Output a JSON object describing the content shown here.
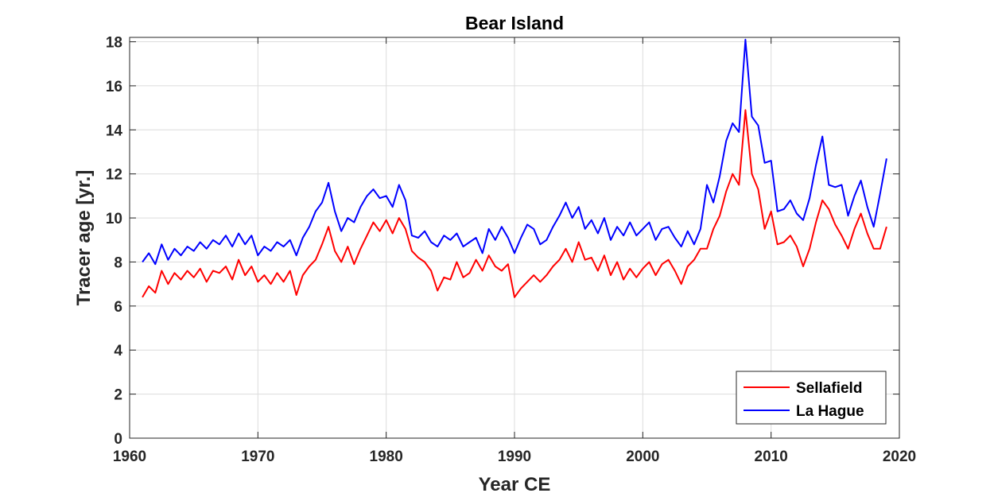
{
  "chart_data": {
    "type": "line",
    "title": "Bear Island",
    "xlabel": "Year CE",
    "ylabel": "Tracer age [yr.]",
    "xlim": [
      1960,
      2020
    ],
    "ylim": [
      0,
      18.2
    ],
    "xticks": [
      1960,
      1970,
      1980,
      1990,
      2000,
      2010,
      2020
    ],
    "yticks": [
      0,
      2,
      4,
      6,
      8,
      10,
      12,
      14,
      16,
      18
    ],
    "grid": true,
    "legend_position": "bottom-right",
    "series": [
      {
        "name": "Sellafield",
        "color": "#ff0000",
        "x": [
          1961.0,
          1961.5,
          1962.0,
          1962.5,
          1963.0,
          1963.5,
          1964.0,
          1964.5,
          1965.0,
          1965.5,
          1966.0,
          1966.5,
          1967.0,
          1967.5,
          1968.0,
          1968.5,
          1969.0,
          1969.5,
          1970.0,
          1970.5,
          1971.0,
          1971.5,
          1972.0,
          1972.5,
          1973.0,
          1973.5,
          1974.0,
          1974.5,
          1975.0,
          1975.5,
          1976.0,
          1976.5,
          1977.0,
          1977.5,
          1978.0,
          1978.5,
          1979.0,
          1979.5,
          1980.0,
          1980.5,
          1981.0,
          1981.5,
          1982.0,
          1982.5,
          1983.0,
          1983.5,
          1984.0,
          1984.5,
          1985.0,
          1985.5,
          1986.0,
          1986.5,
          1987.0,
          1987.5,
          1988.0,
          1988.5,
          1989.0,
          1989.5,
          1990.0,
          1990.5,
          1991.0,
          1991.5,
          1992.0,
          1992.5,
          1993.0,
          1993.5,
          1994.0,
          1994.5,
          1995.0,
          1995.5,
          1996.0,
          1996.5,
          1997.0,
          1997.5,
          1998.0,
          1998.5,
          1999.0,
          1999.5,
          2000.0,
          2000.5,
          2001.0,
          2001.5,
          2002.0,
          2002.5,
          2003.0,
          2003.5,
          2004.0,
          2004.5,
          2005.0,
          2005.5,
          2006.0,
          2006.5,
          2007.0,
          2007.5,
          2008.0,
          2008.5,
          2009.0,
          2009.5,
          2010.0,
          2010.5,
          2011.0,
          2011.5,
          2012.0,
          2012.5,
          2013.0,
          2013.5,
          2014.0,
          2014.5,
          2015.0,
          2015.5,
          2016.0,
          2016.5,
          2017.0,
          2017.5,
          2018.0,
          2018.5,
          2019.0
        ],
        "values": [
          6.4,
          6.9,
          6.6,
          7.6,
          7.0,
          7.5,
          7.2,
          7.6,
          7.3,
          7.7,
          7.1,
          7.6,
          7.5,
          7.8,
          7.2,
          8.1,
          7.4,
          7.8,
          7.1,
          7.4,
          7.0,
          7.5,
          7.1,
          7.6,
          6.5,
          7.4,
          7.8,
          8.1,
          8.8,
          9.6,
          8.5,
          8.0,
          8.7,
          7.9,
          8.6,
          9.2,
          9.8,
          9.4,
          9.9,
          9.3,
          10.0,
          9.5,
          8.5,
          8.2,
          8.0,
          7.6,
          6.7,
          7.3,
          7.2,
          8.0,
          7.3,
          7.5,
          8.1,
          7.6,
          8.3,
          7.8,
          7.6,
          7.9,
          6.4,
          6.8,
          7.1,
          7.4,
          7.1,
          7.4,
          7.8,
          8.1,
          8.6,
          8.0,
          8.9,
          8.1,
          8.2,
          7.6,
          8.3,
          7.4,
          8.0,
          7.2,
          7.7,
          7.3,
          7.7,
          8.0,
          7.4,
          7.9,
          8.1,
          7.6,
          7.0,
          7.8,
          8.1,
          8.6,
          8.6,
          9.5,
          10.1,
          11.2,
          12.0,
          11.5,
          14.9,
          12.0,
          11.3,
          9.5,
          10.3,
          8.8,
          8.9,
          9.2,
          8.7,
          7.8,
          8.6,
          9.8,
          10.8,
          10.4,
          9.7,
          9.2,
          8.6,
          9.5,
          10.2,
          9.3,
          8.6,
          8.6,
          9.6
        ]
      },
      {
        "name": "La Hague",
        "color": "#0000ff",
        "x": [
          1961.0,
          1961.5,
          1962.0,
          1962.5,
          1963.0,
          1963.5,
          1964.0,
          1964.5,
          1965.0,
          1965.5,
          1966.0,
          1966.5,
          1967.0,
          1967.5,
          1968.0,
          1968.5,
          1969.0,
          1969.5,
          1970.0,
          1970.5,
          1971.0,
          1971.5,
          1972.0,
          1972.5,
          1973.0,
          1973.5,
          1974.0,
          1974.5,
          1975.0,
          1975.5,
          1976.0,
          1976.5,
          1977.0,
          1977.5,
          1978.0,
          1978.5,
          1979.0,
          1979.5,
          1980.0,
          1980.5,
          1981.0,
          1981.5,
          1982.0,
          1982.5,
          1983.0,
          1983.5,
          1984.0,
          1984.5,
          1985.0,
          1985.5,
          1986.0,
          1986.5,
          1987.0,
          1987.5,
          1988.0,
          1988.5,
          1989.0,
          1989.5,
          1990.0,
          1990.5,
          1991.0,
          1991.5,
          1992.0,
          1992.5,
          1993.0,
          1993.5,
          1994.0,
          1994.5,
          1995.0,
          1995.5,
          1996.0,
          1996.5,
          1997.0,
          1997.5,
          1998.0,
          1998.5,
          1999.0,
          1999.5,
          2000.0,
          2000.5,
          2001.0,
          2001.5,
          2002.0,
          2002.5,
          2003.0,
          2003.5,
          2004.0,
          2004.5,
          2005.0,
          2005.5,
          2006.0,
          2006.5,
          2007.0,
          2007.5,
          2008.0,
          2008.5,
          2009.0,
          2009.5,
          2010.0,
          2010.5,
          2011.0,
          2011.5,
          2012.0,
          2012.5,
          2013.0,
          2013.5,
          2014.0,
          2014.5,
          2015.0,
          2015.5,
          2016.0,
          2016.5,
          2017.0,
          2017.5,
          2018.0,
          2018.5,
          2019.0
        ],
        "values": [
          8.0,
          8.4,
          7.9,
          8.8,
          8.1,
          8.6,
          8.3,
          8.7,
          8.5,
          8.9,
          8.6,
          9.0,
          8.8,
          9.2,
          8.7,
          9.3,
          8.8,
          9.2,
          8.3,
          8.7,
          8.5,
          8.9,
          8.7,
          9.0,
          8.3,
          9.1,
          9.6,
          10.3,
          10.7,
          11.6,
          10.3,
          9.4,
          10.0,
          9.8,
          10.5,
          11.0,
          11.3,
          10.9,
          11.0,
          10.5,
          11.5,
          10.8,
          9.2,
          9.1,
          9.4,
          8.9,
          8.7,
          9.2,
          9.0,
          9.3,
          8.7,
          8.9,
          9.1,
          8.4,
          9.5,
          9.0,
          9.6,
          9.1,
          8.4,
          9.1,
          9.7,
          9.5,
          8.8,
          9.0,
          9.6,
          10.1,
          10.7,
          10.0,
          10.5,
          9.5,
          9.9,
          9.3,
          10.0,
          9.0,
          9.6,
          9.2,
          9.8,
          9.2,
          9.5,
          9.8,
          9.0,
          9.5,
          9.6,
          9.1,
          8.7,
          9.4,
          8.8,
          9.5,
          11.5,
          10.7,
          11.9,
          13.5,
          14.3,
          13.9,
          18.1,
          14.6,
          14.2,
          12.5,
          12.6,
          10.3,
          10.4,
          10.8,
          10.2,
          9.9,
          10.9,
          12.4,
          13.7,
          11.5,
          11.4,
          11.5,
          10.1,
          11.0,
          11.7,
          10.5,
          9.6,
          11.1,
          12.7
        ]
      }
    ]
  }
}
